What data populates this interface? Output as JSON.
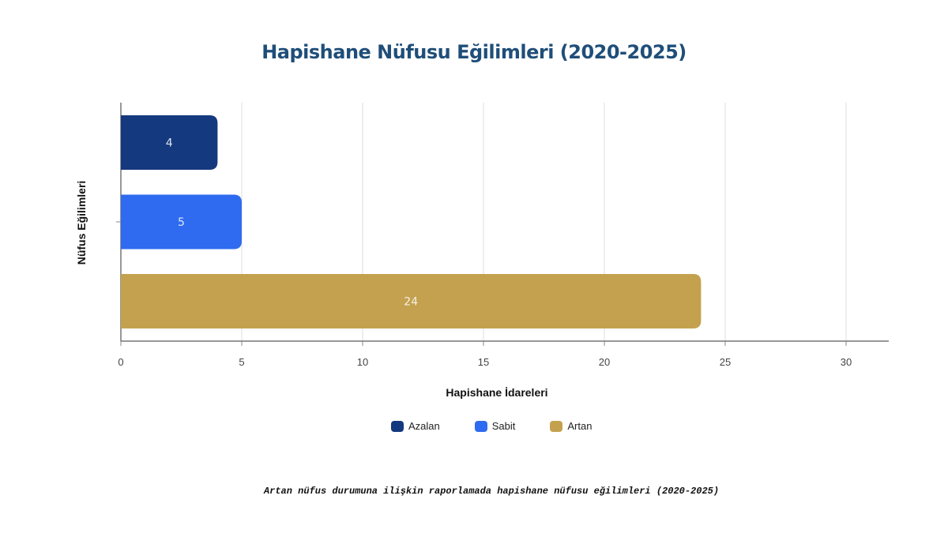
{
  "chart_data": {
    "type": "bar",
    "orientation": "horizontal",
    "title": "Hapishane Nüfusu Eğilimleri (2020-2025)",
    "xlabel": "Hapishane İdareleri",
    "ylabel": "Nüfus Eğilimleri",
    "categories": [
      "Azalan",
      "Sabit",
      "Artan"
    ],
    "values": [
      4,
      5,
      24
    ],
    "colors": [
      "#15397f",
      "#2f6bf0",
      "#c4a14e"
    ],
    "xlim": [
      0,
      32
    ],
    "xticks": [
      0,
      5,
      10,
      15,
      20,
      25,
      30
    ],
    "grid": true,
    "legend": "bottom",
    "caption": "Artan nüfus durumuna ilişkin raporlamada hapishane nüfusu eğilimleri (2020-2025)"
  }
}
